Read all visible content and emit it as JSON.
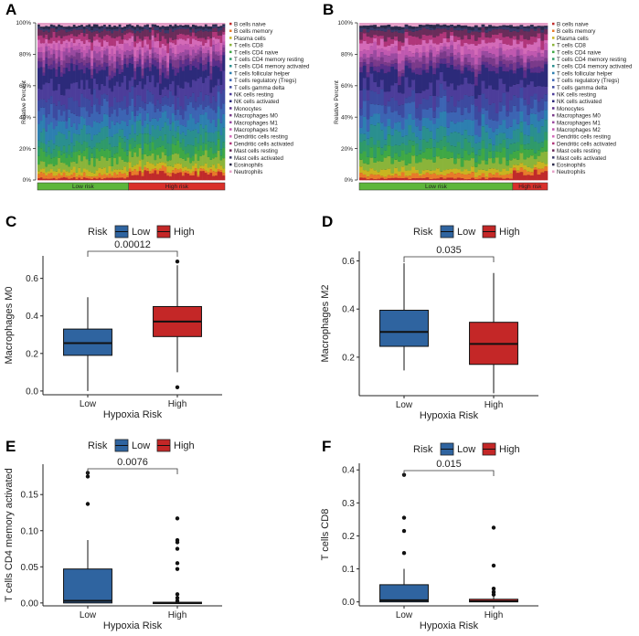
{
  "colors": {
    "low": "#2f64a0",
    "high": "#c42727",
    "risk_low_bar": "#5db63b",
    "risk_high_bar": "#d9302a"
  },
  "stack_colors": [
    "#c02a2a",
    "#e87a2a",
    "#c9b420",
    "#8ab43a",
    "#3fa845",
    "#2f9a6a",
    "#2a8f8f",
    "#2d7fb0",
    "#3c64b3",
    "#3d4aa0",
    "#4c3d9a",
    "#2c2a7a",
    "#5a2f8a",
    "#7a3a8a",
    "#9a4aa0",
    "#c059b0",
    "#d46ab8",
    "#b0367a",
    "#6a2c5a",
    "#3a3a6a",
    "#2a2a4a",
    "#e5a0c8"
  ],
  "chart_data": [
    {
      "panel": "A",
      "type": "bar",
      "stacked": true,
      "ylabel": "Relative Percent",
      "yticks": [
        "0%",
        "20%",
        "40%",
        "60%",
        "80%",
        "100%"
      ],
      "n_low": 36,
      "n_high": 38,
      "group_labels": [
        "Low risk",
        "High risk"
      ],
      "legend": [
        "B cells naive",
        "B cells memory",
        "Plasma cells",
        "T cells CD8",
        "T cells CD4 naive",
        "T cells CD4 memory resting",
        "T cells CD4 memory activated",
        "T cells follicular helper",
        "T cells regulatory (Tregs)",
        "T cells gamma delta",
        "NK cells resting",
        "NK cells activated",
        "Monocytes",
        "Macrophages M0",
        "Macrophages M1",
        "Macrophages M2",
        "Dendritic cells resting",
        "Dendritic cells activated",
        "Mast cells resting",
        "Mast cells activated",
        "Eosinophils",
        "Neutrophils"
      ]
    },
    {
      "panel": "B",
      "type": "bar",
      "stacked": true,
      "ylabel": "Relative Percent",
      "yticks": [
        "0%",
        "20%",
        "40%",
        "60%",
        "80%",
        "100%"
      ],
      "n_low": 44,
      "n_high": 10,
      "group_labels": [
        "Low risk",
        "High risk"
      ],
      "legend": [
        "B cells naive",
        "B cells memory",
        "Plasma cells",
        "T cells CD8",
        "T cells CD4 naive",
        "T cells CD4 memory resting",
        "T cells CD4 memory activated",
        "T cells follicular helper",
        "T cells regulatory (Tregs)",
        "T cells gamma delta",
        "NK cells resting",
        "NK cells activated",
        "Monocytes",
        "Macrophages M0",
        "Macrophages M1",
        "Macrophages M2",
        "Dendritic cells resting",
        "Dendritic cells activated",
        "Mast cells resting",
        "Mast cells activated",
        "Eosinophils",
        "Neutrophils"
      ]
    },
    {
      "panel": "C",
      "type": "box",
      "title": "",
      "legend_title": "Risk",
      "legend": [
        "Low",
        "High"
      ],
      "xlabel": "Hypoxia Risk",
      "ylabel": "Macrophages M0",
      "categories": [
        "Low",
        "High"
      ],
      "ylim": [
        -0.02,
        0.72
      ],
      "yticks": [
        0.0,
        0.2,
        0.4,
        0.6
      ],
      "ytick_labels": [
        "0.0",
        "0.2",
        "0.4",
        "0.6"
      ],
      "p_value": "0.00012",
      "boxes": [
        {
          "min": 0.0,
          "q1": 0.19,
          "median": 0.255,
          "q3": 0.33,
          "max": 0.5,
          "outliers": []
        },
        {
          "min": 0.1,
          "q1": 0.29,
          "median": 0.37,
          "q3": 0.45,
          "max": 0.67,
          "outliers": [
            0.69,
            0.02
          ]
        }
      ]
    },
    {
      "panel": "D",
      "type": "box",
      "legend_title": "Risk",
      "legend": [
        "Low",
        "High"
      ],
      "xlabel": "Hypoxia Risk",
      "ylabel": "Macrophages M2",
      "categories": [
        "Low",
        "High"
      ],
      "ylim": [
        0.04,
        0.64
      ],
      "yticks": [
        0.2,
        0.4,
        0.6
      ],
      "ytick_labels": [
        "0.2",
        "0.4",
        "0.6"
      ],
      "p_value": "0.035",
      "boxes": [
        {
          "min": 0.145,
          "q1": 0.245,
          "median": 0.305,
          "q3": 0.395,
          "max": 0.59,
          "outliers": []
        },
        {
          "min": 0.05,
          "q1": 0.17,
          "median": 0.255,
          "q3": 0.345,
          "max": 0.55,
          "outliers": []
        }
      ]
    },
    {
      "panel": "E",
      "type": "box",
      "legend_title": "Risk",
      "legend": [
        "Low",
        "High"
      ],
      "xlabel": "Hypoxia Risk",
      "ylabel": "T cells CD4 memory activated",
      "categories": [
        "Low",
        "High"
      ],
      "ylim": [
        -0.004,
        0.192
      ],
      "yticks": [
        0.0,
        0.05,
        0.1,
        0.15
      ],
      "ytick_labels": [
        "0.00",
        "0.05",
        "0.10",
        "0.15"
      ],
      "p_value": "0.0076",
      "boxes": [
        {
          "min": 0.0,
          "q1": 0.0,
          "median": 0.003,
          "q3": 0.047,
          "max": 0.087,
          "outliers": [
            0.18,
            0.175,
            0.137
          ]
        },
        {
          "min": 0.0,
          "q1": 0.0,
          "median": 0.0,
          "q3": 0.001,
          "max": 0.002,
          "outliers": [
            0.117,
            0.087,
            0.084,
            0.075,
            0.055,
            0.047,
            0.012,
            0.007,
            0.003
          ]
        }
      ]
    },
    {
      "panel": "F",
      "type": "box",
      "legend_title": "Risk",
      "legend": [
        "Low",
        "High"
      ],
      "xlabel": "Hypoxia Risk",
      "ylabel": "T cells CD8",
      "categories": [
        "Low",
        "High"
      ],
      "ylim": [
        -0.012,
        0.42
      ],
      "yticks": [
        0.0,
        0.1,
        0.2,
        0.3,
        0.4
      ],
      "ytick_labels": [
        "0.0",
        "0.1",
        "0.2",
        "0.3",
        "0.4"
      ],
      "p_value": "0.015",
      "boxes": [
        {
          "min": 0.0,
          "q1": 0.0,
          "median": 0.005,
          "q3": 0.052,
          "max": 0.1,
          "outliers": [
            0.385,
            0.255,
            0.215,
            0.148
          ]
        },
        {
          "min": 0.0,
          "q1": 0.0,
          "median": 0.002,
          "q3": 0.008,
          "max": 0.018,
          "outliers": [
            0.225,
            0.11,
            0.04,
            0.03,
            0.022
          ]
        }
      ]
    }
  ]
}
